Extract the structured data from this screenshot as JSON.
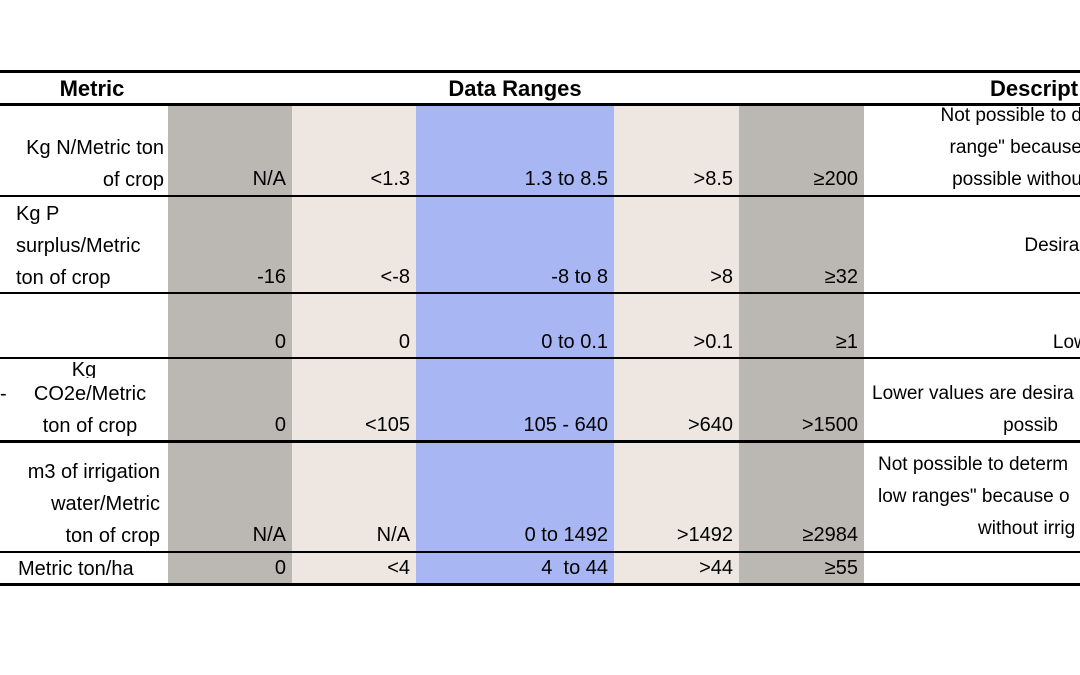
{
  "header": {
    "metric": "Metric",
    "data_ranges": "Data Ranges",
    "description": "Descript"
  },
  "rows": [
    {
      "metric": [
        "Kg N/Metric ton",
        "of crop"
      ],
      "values": [
        "N/A",
        "<1.3",
        "1.3 to 8.5",
        ">8.5",
        "≥200"
      ],
      "description": [
        "Not possible to d",
        "range\" because",
        "possible withou"
      ]
    },
    {
      "metric": [
        "Kg P",
        "surplus/Metric",
        "ton of crop"
      ],
      "values": [
        "-16",
        "<-8",
        "-8 to 8",
        ">8",
        "≥32"
      ],
      "description": [
        "Desirable va"
      ]
    },
    {
      "metric": [],
      "values": [
        "0",
        "0",
        "0 to 0.1",
        ">0.1",
        "≥1"
      ],
      "description": [
        "Lower va"
      ]
    },
    {
      "metric": [
        "Kg",
        "CO2e/Metric",
        "ton of crop"
      ],
      "values": [
        "0",
        "<105",
        "105 - 640",
        ">640",
        ">1500"
      ],
      "description": [
        "Lower values are desira",
        "possib"
      ],
      "left_marker": "-"
    },
    {
      "metric": [
        "m3 of irrigation",
        "water/Metric",
        "ton of crop"
      ],
      "values": [
        "N/A",
        "N/A",
        "0 to 1492",
        ">1492",
        "≥2984"
      ],
      "description": [
        "Not possible to determ",
        "low ranges\" because o",
        "without irrig"
      ]
    },
    {
      "metric": [
        "Metric ton/ha"
      ],
      "values": [
        "0",
        "<4",
        "4  to 44",
        ">44",
        "≥55"
      ],
      "description": []
    }
  ],
  "colors": {
    "worst_column": "#bbb7b2",
    "mid_column": "#ede6e1",
    "target_column": "#a8b7f4"
  }
}
